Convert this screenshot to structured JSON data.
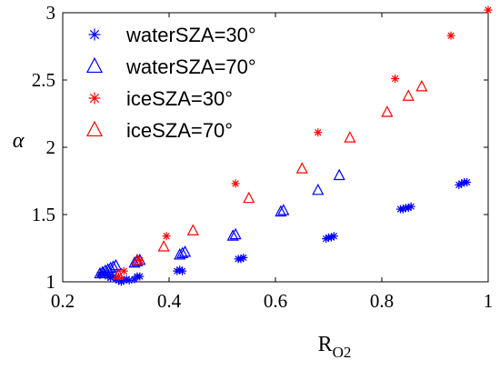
{
  "chart_data": {
    "type": "scatter",
    "title": "",
    "xlabel": "R",
    "xlabel_subscript": "O2",
    "ylabel": "α",
    "xlim": [
      0.2,
      1.0
    ],
    "ylim": [
      1.0,
      3.0
    ],
    "xticks": [
      "0.2",
      "0.4",
      "0.6",
      "0.8",
      "1"
    ],
    "yticks": [
      "1",
      "1.5",
      "2",
      "2.5",
      "3"
    ],
    "grid": false,
    "legend_position": "top-left",
    "series": [
      {
        "name": "waterSZA=30°",
        "marker": "asterisk",
        "color": "#0000ff",
        "points": [
          [
            0.27,
            1.05
          ],
          [
            0.275,
            1.07
          ],
          [
            0.28,
            1.06
          ],
          [
            0.285,
            1.04
          ],
          [
            0.29,
            1.03
          ],
          [
            0.295,
            1.04
          ],
          [
            0.3,
            1.02
          ],
          [
            0.305,
            1.01
          ],
          [
            0.31,
            1.0
          ],
          [
            0.315,
            1.01
          ],
          [
            0.32,
            1.02
          ],
          [
            0.325,
            1.01
          ],
          [
            0.335,
            1.02
          ],
          [
            0.34,
            1.04
          ],
          [
            0.345,
            1.04
          ],
          [
            0.415,
            1.08
          ],
          [
            0.42,
            1.09
          ],
          [
            0.425,
            1.08
          ],
          [
            0.53,
            1.17
          ],
          [
            0.535,
            1.17
          ],
          [
            0.54,
            1.18
          ],
          [
            0.695,
            1.32
          ],
          [
            0.7,
            1.33
          ],
          [
            0.705,
            1.33
          ],
          [
            0.71,
            1.34
          ],
          [
            0.835,
            1.54
          ],
          [
            0.84,
            1.54
          ],
          [
            0.845,
            1.55
          ],
          [
            0.85,
            1.55
          ],
          [
            0.855,
            1.56
          ],
          [
            0.945,
            1.72
          ],
          [
            0.95,
            1.73
          ],
          [
            0.955,
            1.74
          ],
          [
            0.96,
            1.74
          ]
        ]
      },
      {
        "name": "waterSZA=70°",
        "marker": "triangle",
        "color": "#0000ff",
        "points": [
          [
            0.27,
            1.06
          ],
          [
            0.275,
            1.07
          ],
          [
            0.28,
            1.08
          ],
          [
            0.285,
            1.09
          ],
          [
            0.29,
            1.1
          ],
          [
            0.295,
            1.11
          ],
          [
            0.3,
            1.12
          ],
          [
            0.335,
            1.14
          ],
          [
            0.34,
            1.15
          ],
          [
            0.345,
            1.16
          ],
          [
            0.42,
            1.2
          ],
          [
            0.425,
            1.21
          ],
          [
            0.43,
            1.22
          ],
          [
            0.52,
            1.34
          ],
          [
            0.525,
            1.35
          ],
          [
            0.61,
            1.52
          ],
          [
            0.615,
            1.53
          ],
          [
            0.68,
            1.68
          ],
          [
            0.72,
            1.79
          ]
        ]
      },
      {
        "name": "iceSZA=30°",
        "marker": "asterisk",
        "color": "#ff0000",
        "points": [
          [
            0.305,
            1.04
          ],
          [
            0.315,
            1.08
          ],
          [
            0.345,
            1.16
          ],
          [
            0.395,
            1.34
          ],
          [
            0.525,
            1.73
          ],
          [
            0.68,
            2.11
          ],
          [
            0.825,
            2.51
          ],
          [
            0.93,
            2.83
          ],
          [
            1.0,
            3.02
          ]
        ]
      },
      {
        "name": "iceSZA=70°",
        "marker": "triangle",
        "color": "#ff0000",
        "points": [
          [
            0.305,
            1.05
          ],
          [
            0.34,
            1.16
          ],
          [
            0.39,
            1.26
          ],
          [
            0.445,
            1.38
          ],
          [
            0.55,
            1.62
          ],
          [
            0.65,
            1.84
          ],
          [
            0.74,
            2.07
          ],
          [
            0.81,
            2.26
          ],
          [
            0.85,
            2.38
          ],
          [
            0.875,
            2.45
          ]
        ]
      }
    ]
  }
}
